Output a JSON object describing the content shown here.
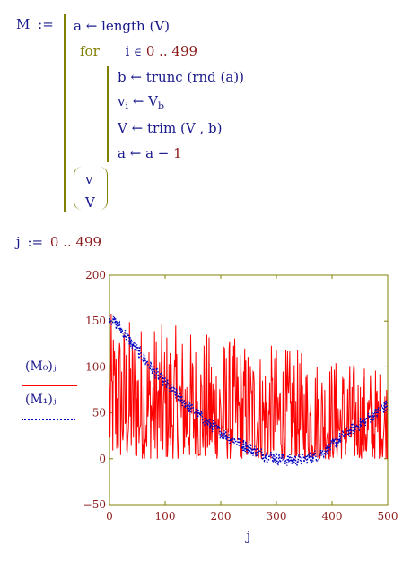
{
  "program": {
    "lhs": "M",
    "assign": ":=",
    "line1": {
      "var": "a",
      "arrow": "←",
      "expr": "length (V)"
    },
    "for_kw": "for",
    "for_var": "i",
    "for_in": "∈",
    "for_range": "0 .. 499",
    "body1": {
      "var": "b",
      "arrow": "←",
      "expr": "trunc (rnd (a))"
    },
    "body2": {
      "var": "v",
      "sub": "i",
      "arrow": "←",
      "expr": "V",
      "expr_sub": "b"
    },
    "body3": {
      "var": "V",
      "arrow": "←",
      "expr": "trim (V ,  b)"
    },
    "body4": {
      "var": "a",
      "arrow": "←",
      "expr_a": "a −",
      "expr_n": "1"
    },
    "vec_top": "v",
    "vec_bottom": "V"
  },
  "range_def": {
    "var": "j",
    "assign": ":=",
    "range": "0 .. 499"
  },
  "legend": {
    "series1": "(M₀)ⱼ",
    "series2": "(M₁)ⱼ"
  },
  "chart_data": {
    "type": "line",
    "xlabel": "j",
    "xlim": [
      0,
      500
    ],
    "ylim": [
      -50,
      200
    ],
    "xticks": [
      0,
      100,
      200,
      300,
      400,
      500
    ],
    "yticks": [
      -50,
      0,
      50,
      100,
      150,
      200
    ],
    "grid": false,
    "colors": {
      "series1": "#ff0000",
      "series2": "#0000c0"
    },
    "series": [
      {
        "name": "(M₀)ⱼ",
        "style": "solid",
        "generator": "random integer in [0, remaining length)",
        "count": 500
      },
      {
        "name": "(M₁)ⱼ",
        "style": "dotted",
        "x": [
          0,
          25,
          50,
          75,
          100,
          125,
          150,
          175,
          200,
          225,
          250,
          275,
          300,
          325,
          350,
          375,
          400,
          425,
          450,
          475,
          499
        ],
        "values": [
          155,
          138,
          118,
          99,
          82,
          67,
          53,
          40,
          29,
          20,
          12,
          5,
          1,
          -2,
          0,
          4,
          14,
          28,
          38,
          48,
          58
        ]
      }
    ]
  }
}
